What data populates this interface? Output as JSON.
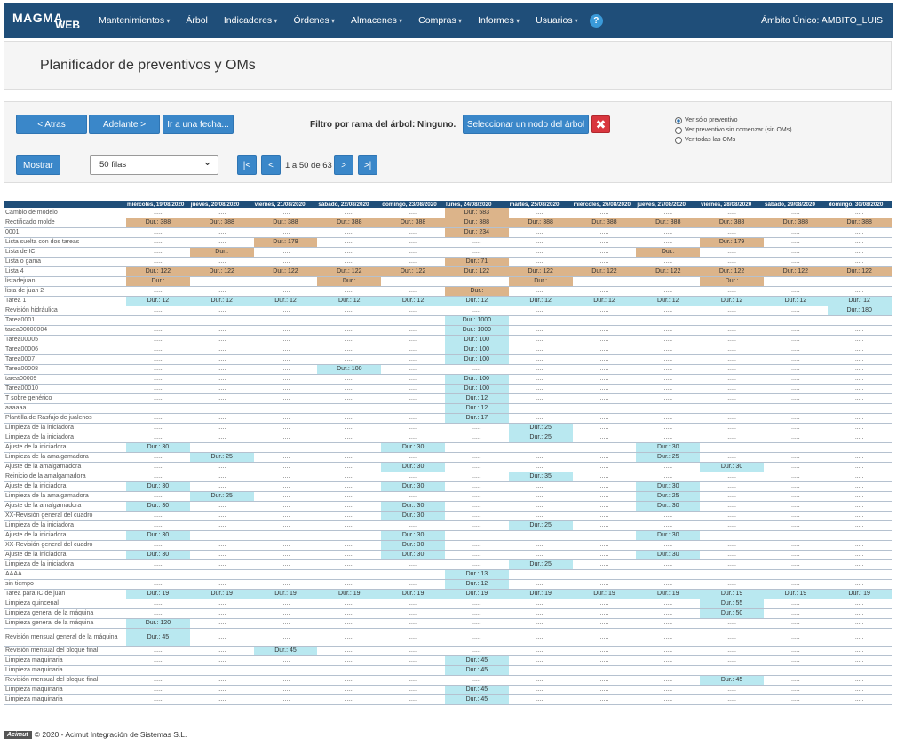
{
  "nav": {
    "logo_top": "MAGMA",
    "logo_bottom": "WEB",
    "items": [
      "Mantenimientos",
      "Árbol",
      "Indicadores",
      "Órdenes",
      "Almacenes",
      "Compras",
      "Informes",
      "Usuarios"
    ],
    "help": "?",
    "ambito": "Ámbito Único: AMBITO_LUIS"
  },
  "page_title": "Planificador de preventivos y OMs",
  "controls": {
    "back": "< Atras",
    "forward": "Adelante >",
    "goto": "Ir a una fecha...",
    "filter_label": "Filtro por rama del árbol:",
    "filter_value": "Ninguno.",
    "select_node": "Seleccionar un nodo del árbol",
    "clear": "✖",
    "show": "Mostrar",
    "rows_select": "50 filas",
    "first": "|<",
    "prev": "<",
    "page_info": "1 a 50 de 63",
    "next": ">",
    "last": ">|",
    "radio_options": [
      "Ver sólo preventivo",
      "Ver preventivo sin comenzar (sin OMs)",
      "Ver todas las OMs"
    ],
    "radio_selected": 0
  },
  "table": {
    "empty": ".....",
    "dates": [
      "miércoles, 19/08/2020",
      "jueves, 20/08/2020",
      "viernes, 21/08/2020",
      "sábado, 22/08/2020",
      "domingo, 23/08/2020",
      "lunes, 24/08/2020",
      "martes, 25/08/2020",
      "miércoles, 26/08/2020",
      "jueves, 27/08/2020",
      "viernes, 28/08/2020",
      "sábado, 29/08/2020",
      "domingo, 30/08/2020"
    ],
    "rows": [
      {
        "name": "Cambio de modelo",
        "cells": {
          "5": [
            "o",
            "Dur.: 583"
          ]
        }
      },
      {
        "name": "Rectificado molde",
        "cells": {
          "0": [
            "o",
            "Dur.: 388"
          ],
          "1": [
            "o",
            "Dur.: 388"
          ],
          "2": [
            "o",
            "Dur.: 388"
          ],
          "3": [
            "o",
            "Dur.: 388"
          ],
          "4": [
            "o",
            "Dur.: 388"
          ],
          "5": [
            "o",
            "Dur.: 388"
          ],
          "6": [
            "o",
            "Dur.: 388"
          ],
          "7": [
            "o",
            "Dur.: 388"
          ],
          "8": [
            "o",
            "Dur.: 388"
          ],
          "9": [
            "o",
            "Dur.: 388"
          ],
          "10": [
            "o",
            "Dur.: 388"
          ],
          "11": [
            "o",
            "Dur.: 388"
          ]
        }
      },
      {
        "name": "0001",
        "cells": {
          "5": [
            "o",
            "Dur.: 234"
          ]
        }
      },
      {
        "name": "Lista suelta con dos tareas",
        "cells": {
          "2": [
            "o",
            "Dur.: 179"
          ],
          "9": [
            "o",
            "Dur.: 179"
          ]
        }
      },
      {
        "name": "Lista de IC",
        "cells": {
          "1": [
            "o",
            "Dur.:"
          ],
          "8": [
            "o",
            "Dur.:"
          ]
        }
      },
      {
        "name": "Lista o gama",
        "cells": {
          "5": [
            "o",
            "Dur.: 71"
          ]
        }
      },
      {
        "name": "Lista 4",
        "cells": {
          "0": [
            "o",
            "Dur.: 122"
          ],
          "1": [
            "o",
            "Dur.: 122"
          ],
          "2": [
            "o",
            "Dur.: 122"
          ],
          "3": [
            "o",
            "Dur.: 122"
          ],
          "4": [
            "o",
            "Dur.: 122"
          ],
          "5": [
            "o",
            "Dur.: 122"
          ],
          "6": [
            "o",
            "Dur.: 122"
          ],
          "7": [
            "o",
            "Dur.: 122"
          ],
          "8": [
            "o",
            "Dur.: 122"
          ],
          "9": [
            "o",
            "Dur.: 122"
          ],
          "10": [
            "o",
            "Dur.: 122"
          ],
          "11": [
            "o",
            "Dur.: 122"
          ]
        }
      },
      {
        "name": "listadejuan",
        "cells": {
          "0": [
            "o",
            "Dur.:"
          ],
          "3": [
            "o",
            "Dur.:"
          ],
          "6": [
            "o",
            "Dur.:"
          ],
          "9": [
            "o",
            "Dur.:"
          ]
        }
      },
      {
        "name": "lista de juan 2",
        "cells": {
          "5": [
            "o",
            "Dur.:"
          ]
        }
      },
      {
        "name": "Tarea 1",
        "cells": {
          "0": [
            "c",
            "Dur.: 12"
          ],
          "1": [
            "c",
            "Dur.: 12"
          ],
          "2": [
            "c",
            "Dur.: 12"
          ],
          "3": [
            "c",
            "Dur.: 12"
          ],
          "4": [
            "c",
            "Dur.: 12"
          ],
          "5": [
            "c",
            "Dur.: 12"
          ],
          "6": [
            "c",
            "Dur.: 12"
          ],
          "7": [
            "c",
            "Dur.: 12"
          ],
          "8": [
            "c",
            "Dur.: 12"
          ],
          "9": [
            "c",
            "Dur.: 12"
          ],
          "10": [
            "c",
            "Dur.: 12"
          ],
          "11": [
            "c",
            "Dur.: 12"
          ]
        }
      },
      {
        "name": "Revisión hidráulica",
        "cells": {
          "11": [
            "c",
            "Dur.: 180"
          ]
        }
      },
      {
        "name": "Tarea0001",
        "cells": {
          "5": [
            "c",
            "Dur.: 1000"
          ]
        }
      },
      {
        "name": "tarea00000004",
        "cells": {
          "5": [
            "c",
            "Dur.: 1000"
          ]
        }
      },
      {
        "name": "Tarea00005",
        "cells": {
          "5": [
            "c",
            "Dur.: 100"
          ]
        }
      },
      {
        "name": "Tarea00006",
        "cells": {
          "5": [
            "c",
            "Dur.: 100"
          ]
        }
      },
      {
        "name": "Tarea0007",
        "cells": {
          "5": [
            "c",
            "Dur.: 100"
          ]
        }
      },
      {
        "name": "Tarea00008",
        "cells": {
          "3": [
            "c",
            "Dur.: 100"
          ]
        }
      },
      {
        "name": "tarea00009",
        "cells": {
          "5": [
            "c",
            "Dur.: 100"
          ]
        }
      },
      {
        "name": "Tarea00010",
        "cells": {
          "5": [
            "c",
            "Dur.: 100"
          ]
        }
      },
      {
        "name": "T sobre genérico",
        "cells": {
          "5": [
            "c",
            "Dur.: 12"
          ]
        }
      },
      {
        "name": "aaaaaa",
        "cells": {
          "5": [
            "c",
            "Dur.: 12"
          ]
        }
      },
      {
        "name": "Plantilla de Rasfajo de jualenos",
        "cells": {
          "5": [
            "c",
            "Dur.: 17"
          ]
        }
      },
      {
        "name": "Limpieza de la iniciadora",
        "cells": {
          "6": [
            "c",
            "Dur.: 25"
          ]
        }
      },
      {
        "name": "Limpieza de la iniciadora",
        "cells": {
          "6": [
            "c",
            "Dur.: 25"
          ]
        }
      },
      {
        "name": "Ajuste de la iniciadora",
        "cells": {
          "0": [
            "c",
            "Dur.: 30"
          ],
          "4": [
            "c",
            "Dur.: 30"
          ],
          "8": [
            "c",
            "Dur.: 30"
          ]
        }
      },
      {
        "name": "Limpieza de la amalgamadora",
        "cells": {
          "1": [
            "c",
            "Dur.: 25"
          ],
          "8": [
            "c",
            "Dur.: 25"
          ]
        }
      },
      {
        "name": "Ajuste de la amalgamadora",
        "cells": {
          "4": [
            "c",
            "Dur.: 30"
          ],
          "9": [
            "c",
            "Dur.: 30"
          ]
        }
      },
      {
        "name": "Reinicio de la amalgamadora",
        "cells": {
          "6": [
            "c",
            "Dur.: 35"
          ]
        }
      },
      {
        "name": "Ajuste de la iniciadora",
        "cells": {
          "0": [
            "c",
            "Dur.: 30"
          ],
          "4": [
            "c",
            "Dur.: 30"
          ],
          "8": [
            "c",
            "Dur.: 30"
          ]
        }
      },
      {
        "name": "Limpieza de la amalgamadora",
        "cells": {
          "1": [
            "c",
            "Dur.: 25"
          ],
          "8": [
            "c",
            "Dur.: 25"
          ]
        }
      },
      {
        "name": "Ajuste de la amalgamadora",
        "cells": {
          "0": [
            "c",
            "Dur.: 30"
          ],
          "4": [
            "c",
            "Dur.: 30"
          ],
          "8": [
            "c",
            "Dur.: 30"
          ]
        }
      },
      {
        "name": "XX-Revisión general del cuadro",
        "cells": {
          "4": [
            "c",
            "Dur.: 30"
          ]
        }
      },
      {
        "name": "Limpieza de la iniciadora",
        "cells": {
          "6": [
            "c",
            "Dur.: 25"
          ]
        }
      },
      {
        "name": "Ajuste de la iniciadora",
        "cells": {
          "0": [
            "c",
            "Dur.: 30"
          ],
          "4": [
            "c",
            "Dur.: 30"
          ],
          "8": [
            "c",
            "Dur.: 30"
          ]
        }
      },
      {
        "name": "XX-Revisión general del cuadro",
        "cells": {
          "4": [
            "c",
            "Dur.: 30"
          ]
        }
      },
      {
        "name": "Ajuste de la iniciadora",
        "cells": {
          "0": [
            "c",
            "Dur.: 30"
          ],
          "4": [
            "c",
            "Dur.: 30"
          ],
          "8": [
            "c",
            "Dur.: 30"
          ]
        }
      },
      {
        "name": "Limpieza de la iniciadora",
        "cells": {
          "6": [
            "c",
            "Dur.: 25"
          ]
        }
      },
      {
        "name": "AAAA",
        "cells": {
          "5": [
            "c",
            "Dur.: 13"
          ]
        }
      },
      {
        "name": "sin tiempo",
        "cells": {
          "5": [
            "c",
            "Dur.: 12"
          ]
        }
      },
      {
        "name": "Tarea para IC de juan",
        "cells": {
          "0": [
            "c",
            "Dur.: 19"
          ],
          "1": [
            "c",
            "Dur.: 19"
          ],
          "2": [
            "c",
            "Dur.: 19"
          ],
          "3": [
            "c",
            "Dur.: 19"
          ],
          "4": [
            "c",
            "Dur.: 19"
          ],
          "5": [
            "c",
            "Dur.: 19"
          ],
          "6": [
            "c",
            "Dur.: 19"
          ],
          "7": [
            "c",
            "Dur.: 19"
          ],
          "8": [
            "c",
            "Dur.: 19"
          ],
          "9": [
            "c",
            "Dur.: 19"
          ],
          "10": [
            "c",
            "Dur.: 19"
          ],
          "11": [
            "c",
            "Dur.: 19"
          ]
        }
      },
      {
        "name": "Limpieza quincenal",
        "cells": {
          "9": [
            "c",
            "Dur.: 55"
          ]
        }
      },
      {
        "name": "Limpieza general de la máquina",
        "cells": {
          "9": [
            "c",
            "Dur.: 50"
          ]
        }
      },
      {
        "name": "Limpieza general de la máquina",
        "cells": {
          "0": [
            "c",
            "Dur.: 120"
          ]
        }
      },
      {
        "name": "Revisión mensual general de la máquina",
        "tall": true,
        "cells": {
          "0": [
            "c",
            "Dur.: 45"
          ]
        }
      },
      {
        "name": "Revisión mensual del bloque final",
        "cells": {
          "2": [
            "c",
            "Dur.: 45"
          ]
        }
      },
      {
        "name": "Limpieza maquinaria",
        "cells": {
          "5": [
            "c",
            "Dur.: 45"
          ]
        }
      },
      {
        "name": "Limpieza maquinaria",
        "cells": {
          "5": [
            "c",
            "Dur.: 45"
          ]
        }
      },
      {
        "name": "Revisión mensual del bloque final",
        "cells": {
          "9": [
            "c",
            "Dur.: 45"
          ]
        }
      },
      {
        "name": "Limpieza maquinaria",
        "cells": {
          "5": [
            "c",
            "Dur.: 45"
          ]
        }
      },
      {
        "name": "Limpieza maquinaria",
        "cells": {
          "5": [
            "c",
            "Dur.: 45"
          ]
        }
      }
    ]
  },
  "footer": {
    "brand": "Acimut",
    "text": "© 2020 - Acimut Integración de Sistemas S.L."
  }
}
